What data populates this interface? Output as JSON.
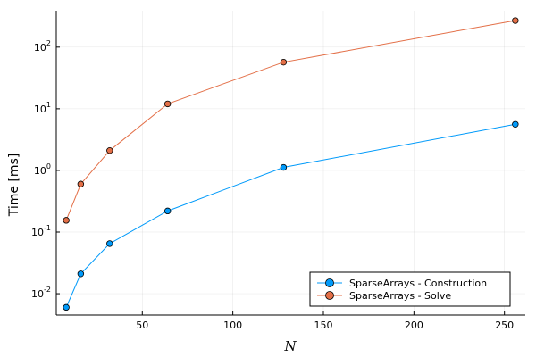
{
  "chart_data": {
    "type": "line",
    "xlabel": "N",
    "ylabel": "Time [ms]",
    "x_scale": "linear",
    "y_scale": "log",
    "xlim": [
      2.5,
      261.5
    ],
    "ylim": [
      0.0045,
      390
    ],
    "x_ticks": [
      50,
      100,
      150,
      200,
      250
    ],
    "y_ticks": [
      {
        "base": "10",
        "exp": "-2",
        "value": 0.01
      },
      {
        "base": "10",
        "exp": "-1",
        "value": 0.1
      },
      {
        "base": "10",
        "exp": "0",
        "value": 1
      },
      {
        "base": "10",
        "exp": "1",
        "value": 10
      },
      {
        "base": "10",
        "exp": "2",
        "value": 100
      }
    ],
    "grid": true,
    "legend_position": "bottom-right",
    "x": [
      8,
      16,
      32,
      64,
      128,
      256
    ],
    "series": [
      {
        "name": "SparseArrays - Construction",
        "color": "#009AFA",
        "values": [
          0.006,
          0.021,
          0.065,
          0.22,
          1.12,
          5.6
        ]
      },
      {
        "name": "SparseArrays - Solve",
        "color": "#E36F47",
        "values": [
          0.155,
          0.6,
          2.1,
          12.0,
          57.0,
          270.0
        ]
      }
    ]
  }
}
